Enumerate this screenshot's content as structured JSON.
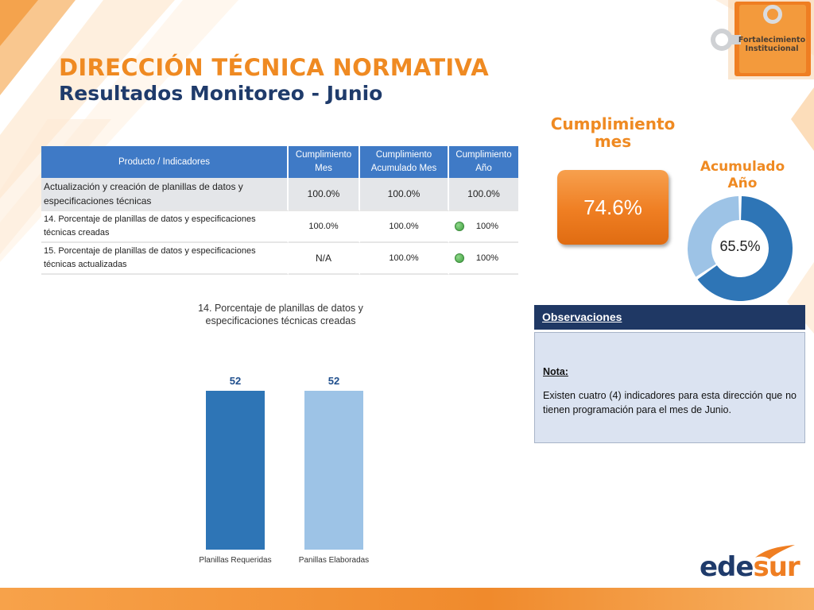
{
  "header": {
    "title": "DIRECCIÓN TÉCNICA NORMATIVA",
    "subtitle": "Resultados Monitoreo - Junio"
  },
  "logo": {
    "line1": "Fortalecimiento",
    "line2": "Institucional",
    "brand_ed": "ede",
    "brand_sur": "sur"
  },
  "table": {
    "headers": [
      "Producto / Indicadores",
      "Cumplimiento Mes",
      "Cumplimiento Acumulado Mes",
      "Cumplimiento Año"
    ],
    "rows": [
      {
        "label": "Actualización y creación de planillas de datos y especificaciones técnicas",
        "mes": "100.0%",
        "acum": "100.0%",
        "ano": "100.0%",
        "status": ""
      },
      {
        "label": "14.  Porcentaje  de planillas de datos y especificaciones técnicas creadas",
        "mes": "100.0%",
        "acum": "100.0%",
        "ano": "100%",
        "status": "green"
      },
      {
        "label": "15. Porcentaje de planillas de datos y especificaciones técnicas actualizadas",
        "mes": "N/A",
        "acum": "100.0%",
        "ano": "100%",
        "status": "green"
      }
    ]
  },
  "chart_data": {
    "type": "bar",
    "title": "14. Porcentaje  de planillas de datos y especificaciones técnicas creadas",
    "categories": [
      "Planillas Requeridas",
      "Panillas Elaboradas"
    ],
    "values": [
      52,
      52
    ],
    "colors": [
      "#2e75b6",
      "#9dc3e6"
    ],
    "ylim": [
      0,
      52
    ]
  },
  "kpi": {
    "mes_title": "Cumplimiento mes",
    "mes_value": "74.6%",
    "ano_title": "Acumulado Año",
    "ano_value": "65.5%",
    "ano_fraction": 0.655,
    "colors": {
      "primary": "#2e75b6",
      "rest": "#9dc3e6",
      "accent": "#ef8a22"
    }
  },
  "observaciones": {
    "title": "Observaciones",
    "note_label": "Nota:",
    "text": "Existen cuatro (4) indicadores para esta dirección que no tienen programación para el mes de Junio."
  }
}
